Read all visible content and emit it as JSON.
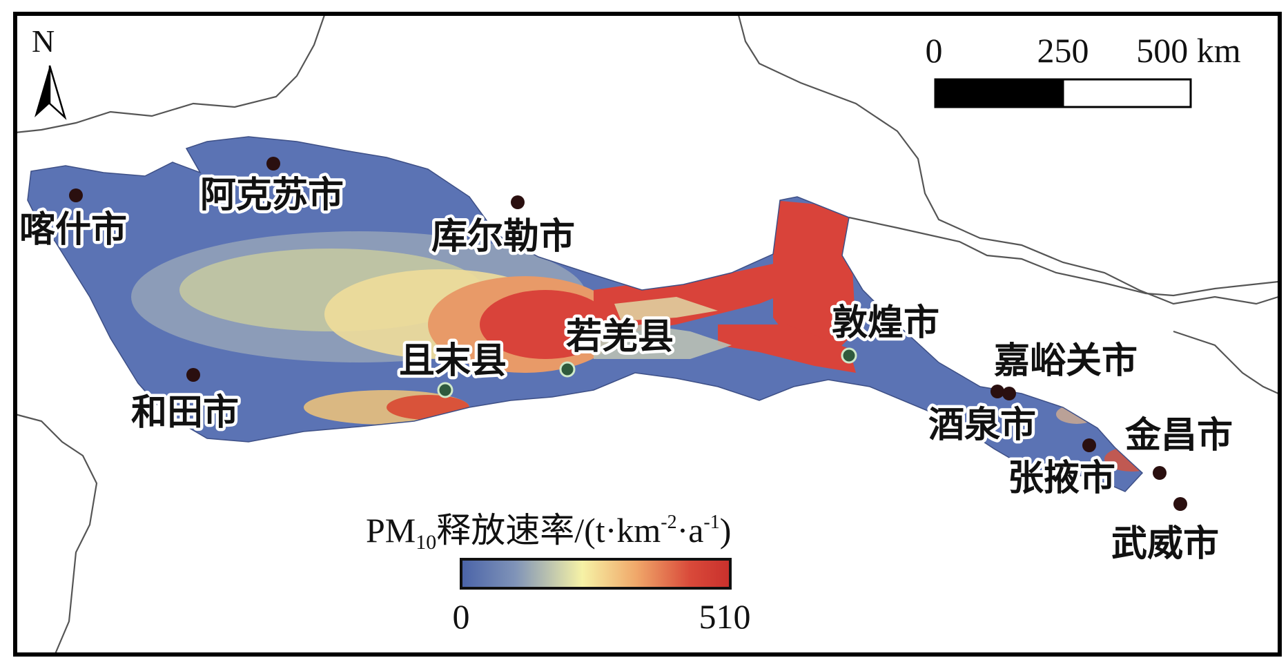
{
  "north_arrow": {
    "label": "N"
  },
  "scale_bar": {
    "ticks": [
      "0",
      "250",
      "500 km"
    ]
  },
  "legend": {
    "title_prefix": "PM",
    "title_subscript": "10",
    "title_main": "释放速率/(t·km",
    "title_sup1": "-2",
    "title_mid": "·a",
    "title_sup2": "-1",
    "title_end": ")",
    "min_label": "0",
    "max_label": "510",
    "gradient_colors": [
      "#4a63a8",
      "#7f93b8",
      "#f6f2a6",
      "#f0a86a",
      "#d94a3a",
      "#c9302c"
    ]
  },
  "colors": {
    "region_base": "#5b73b4",
    "hotspot": "#d9433a",
    "medium": "#eedd9a",
    "border": "#555555",
    "frame": "#000000",
    "city_dot_red": "#2a0f0f",
    "city_dot_green": "#2f5a3c"
  },
  "cities": [
    {
      "id": "kashgar",
      "name": "喀什市",
      "dot": "red"
    },
    {
      "id": "aksu",
      "name": "阿克苏市",
      "dot": "red"
    },
    {
      "id": "korla",
      "name": "库尔勒市",
      "dot": "red"
    },
    {
      "id": "hotan",
      "name": "和田市",
      "dot": "red"
    },
    {
      "id": "qiemo",
      "name": "且末县",
      "dot": "green"
    },
    {
      "id": "ruoqiang",
      "name": "若羌县",
      "dot": "green"
    },
    {
      "id": "dunhuang",
      "name": "敦煌市",
      "dot": "green"
    },
    {
      "id": "jiayuguan",
      "name": "嘉峪关市",
      "dot": "red"
    },
    {
      "id": "jiuquan",
      "name": "酒泉市",
      "dot": "red"
    },
    {
      "id": "zhangye",
      "name": "张掖市",
      "dot": "red"
    },
    {
      "id": "jinchang",
      "name": "金昌市",
      "dot": "red"
    },
    {
      "id": "wuwei",
      "name": "武威市",
      "dot": "red"
    }
  ]
}
